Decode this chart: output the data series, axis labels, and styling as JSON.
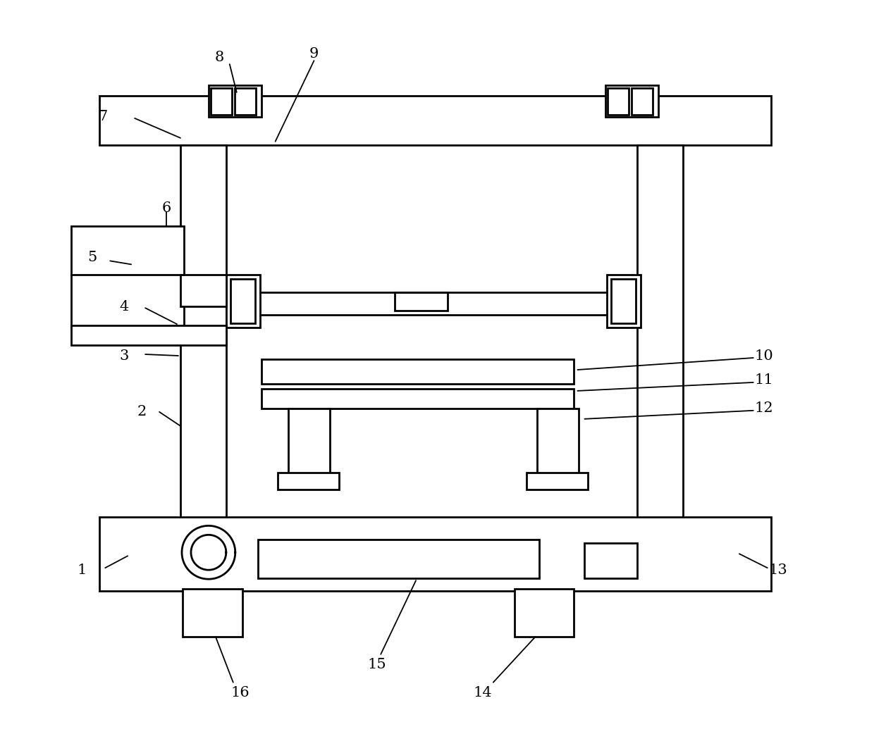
{
  "bg_color": "#ffffff",
  "line_color": "#000000",
  "lw": 2.0,
  "fig_width": 12.4,
  "fig_height": 10.35
}
